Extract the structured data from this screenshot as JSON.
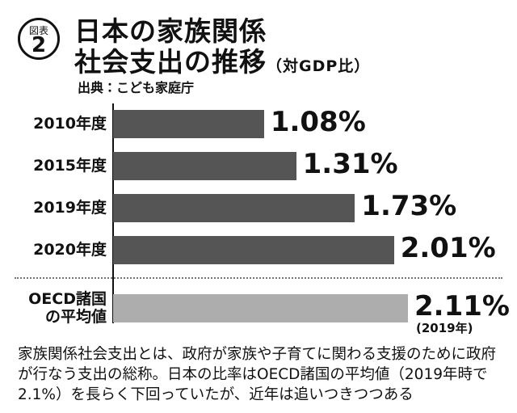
{
  "chart_data": {
    "type": "bar",
    "badge_label": "図表",
    "badge_number": "2",
    "title_lines": [
      "日本の家族関係",
      "社会支出の推移"
    ],
    "subtitle": "（対GDP比）",
    "source": "出典：こども家庭庁",
    "categories": [
      [
        "2010年度"
      ],
      [
        "2015年度"
      ],
      [
        "2019年度"
      ],
      [
        "2020年度"
      ],
      [
        "OECD諸国",
        "の平均値"
      ]
    ],
    "values": [
      1.08,
      1.31,
      1.73,
      2.01,
      2.11
    ],
    "value_labels": [
      "1.08%",
      "1.31%",
      "1.73%",
      "2.01%",
      "2.11%"
    ],
    "colors": [
      "#555555",
      "#555555",
      "#555555",
      "#555555",
      "#adadad"
    ],
    "xlim": [
      0,
      3
    ],
    "annotation": "(2019年)",
    "caption": "家族関係社会支出とは、政府が家族や子育てに関わる支援のために政府が行なう支出の総称。日本の比率はOECD諸国の平均値（2019年時で2.1%）を長らく下回っていたが、近年は追いつきつつある"
  }
}
